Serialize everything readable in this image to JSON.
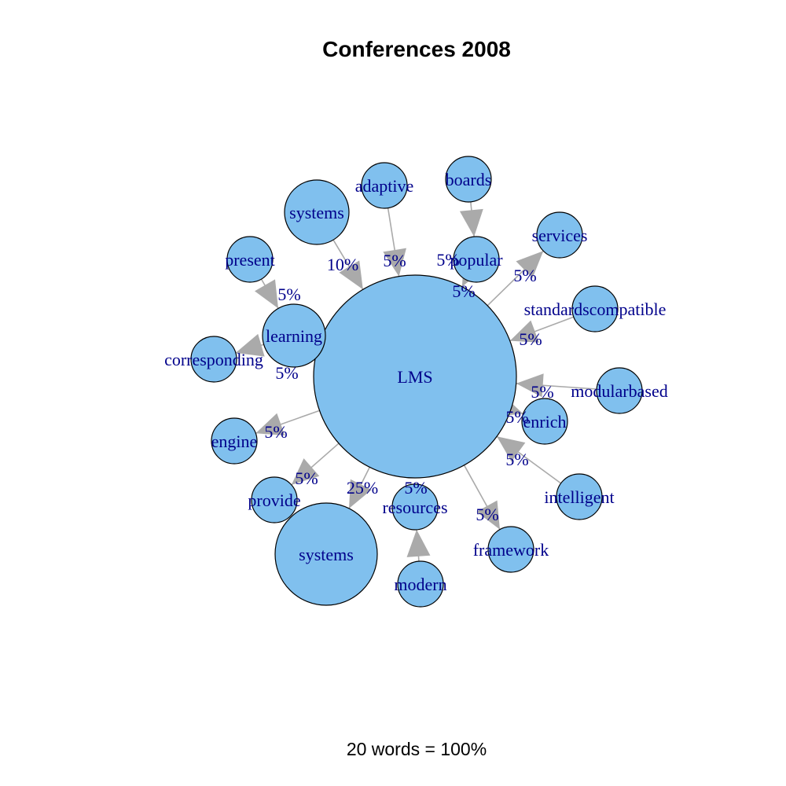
{
  "title": "Conferences 2008",
  "footer": "20 words = 100%",
  "colors": {
    "node_fill": "#80c0ee",
    "edge": "#aaaaaa",
    "label": "#00008b"
  },
  "center": {
    "id": "lms",
    "label": "LMS"
  },
  "nodes": [
    {
      "id": "lms",
      "label": "LMS"
    },
    {
      "id": "boards",
      "label": "boards"
    },
    {
      "id": "adaptive",
      "label": "adaptive"
    },
    {
      "id": "systems-top",
      "label": "systems"
    },
    {
      "id": "present",
      "label": "present"
    },
    {
      "id": "learning",
      "label": "learning"
    },
    {
      "id": "corresponding",
      "label": "corresponding"
    },
    {
      "id": "engine",
      "label": "engine"
    },
    {
      "id": "provide",
      "label": "provide"
    },
    {
      "id": "systems-bottom",
      "label": "systems"
    },
    {
      "id": "resources",
      "label": "resources"
    },
    {
      "id": "modern",
      "label": "modern"
    },
    {
      "id": "framework",
      "label": "framework"
    },
    {
      "id": "intelligent",
      "label": "intelligent"
    },
    {
      "id": "enrich",
      "label": "enrich"
    },
    {
      "id": "modularbased",
      "label": "modularbased"
    },
    {
      "id": "standardscompatible",
      "label": "standardscompatible"
    },
    {
      "id": "services",
      "label": "services"
    },
    {
      "id": "popular",
      "label": "popular"
    }
  ],
  "edges": [
    {
      "from": "boards",
      "to": "popular",
      "label": "5%"
    },
    {
      "from": "adaptive",
      "to": "lms",
      "label": "5%"
    },
    {
      "from": "systems-top",
      "to": "lms",
      "label": "10%"
    },
    {
      "from": "present",
      "to": "learning",
      "label": "5%"
    },
    {
      "from": "learning",
      "to": "corresponding",
      "label": "5%"
    },
    {
      "from": "lms",
      "to": "engine",
      "label": "5%"
    },
    {
      "from": "lms",
      "to": "provide",
      "label": "5%"
    },
    {
      "from": "lms",
      "to": "systems-bottom",
      "label": "25%"
    },
    {
      "from": "modern",
      "to": "resources",
      "label": "5%"
    },
    {
      "from": "lms",
      "to": "framework",
      "label": "5%"
    },
    {
      "from": "intelligent",
      "to": "lms",
      "label": "5%"
    },
    {
      "from": "lms",
      "to": "enrich",
      "label": "5%"
    },
    {
      "from": "modularbased",
      "to": "lms",
      "label": "5%"
    },
    {
      "from": "standardscompatible",
      "to": "lms",
      "label": "5%"
    },
    {
      "from": "lms",
      "to": "services",
      "label": "5%"
    },
    {
      "from": "popular",
      "to": "lms",
      "label": "5%"
    },
    {
      "from": "lms",
      "to": "learning",
      "label": ""
    }
  ]
}
